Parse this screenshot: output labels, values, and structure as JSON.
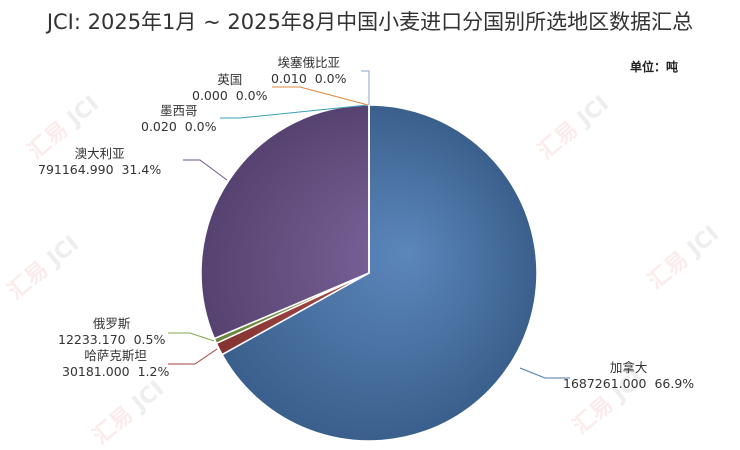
{
  "watermark": "汇易 JCI",
  "chart_data": {
    "type": "pie",
    "title": "JCI: 2025年1月 ~ 2025年8月中国小麦进口分国别所选地区数据汇总",
    "unit_label": "单位：吨",
    "start_angle": "top, clockwise",
    "slices": [
      {
        "name": "加拿大",
        "value": 1687261.0,
        "value_text": "1687261.000",
        "percent_text": "66.9%",
        "color": "#4a7ab3"
      },
      {
        "name": "哈萨克斯坦",
        "value": 30181.0,
        "value_text": "30181.000",
        "percent_text": "1.2%",
        "color": "#a8413f"
      },
      {
        "name": "俄罗斯",
        "value": 12233.17,
        "value_text": "12233.170",
        "percent_text": "0.5%",
        "color": "#86a84b"
      },
      {
        "name": "澳大利亚",
        "value": 791164.99,
        "value_text": "791164.990",
        "percent_text": "31.4%",
        "color": "#6e5490"
      },
      {
        "name": "墨西哥",
        "value": 0.02,
        "value_text": "0.020",
        "percent_text": "0.0%",
        "color": "#3aa0b5"
      },
      {
        "name": "英国",
        "value": 0.0,
        "value_text": "0.000",
        "percent_text": "0.0%",
        "color": "#e0883a"
      },
      {
        "name": "埃塞俄比亚",
        "value": 0.01,
        "value_text": "0.010",
        "percent_text": "0.0%",
        "color": "#8aa6d0"
      }
    ]
  }
}
